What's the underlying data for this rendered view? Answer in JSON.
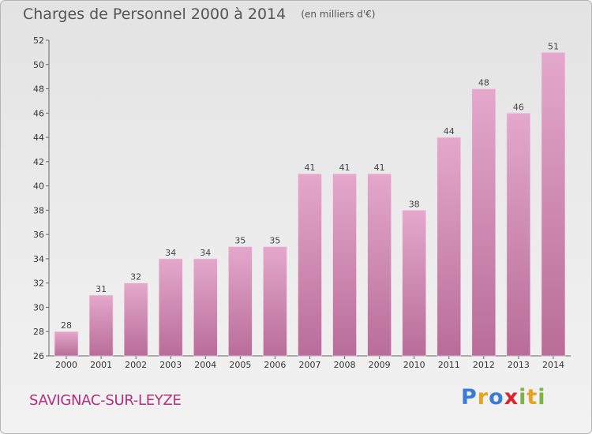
{
  "header": {
    "title": "Charges de Personnel 2000 à 2014",
    "unit": "(en milliers d'€)"
  },
  "footer": {
    "commune": "SAVIGNAC-SUR-LEYZE",
    "logo_letters": [
      {
        "ch": "P",
        "color": "#3a7bd5"
      },
      {
        "ch": "r",
        "color": "#e8a21d"
      },
      {
        "ch": "o",
        "color": "#3a7bd5"
      },
      {
        "ch": "x",
        "color": "#d9262e"
      },
      {
        "ch": "i",
        "color": "#7cb342"
      },
      {
        "ch": "t",
        "color": "#e8a21d"
      },
      {
        "ch": "i",
        "color": "#7cb342"
      }
    ]
  },
  "colors": {
    "bar_light": "#e4a8cc",
    "bar_dark": "#b86d98",
    "accent": "#b22f7f"
  },
  "chart_data": {
    "type": "bar",
    "title": "Charges de Personnel 2000 à 2014",
    "xlabel": "",
    "ylabel": "",
    "categories": [
      "2000",
      "2001",
      "2002",
      "2003",
      "2004",
      "2005",
      "2006",
      "2007",
      "2008",
      "2009",
      "2010",
      "2011",
      "2012",
      "2013",
      "2014"
    ],
    "values": [
      28,
      31,
      32,
      34,
      34,
      35,
      35,
      41,
      41,
      41,
      38,
      44,
      48,
      46,
      51
    ],
    "ylim": [
      26,
      52
    ],
    "yticks": [
      26,
      28,
      30,
      32,
      34,
      36,
      38,
      40,
      42,
      44,
      46,
      48,
      50,
      52
    ],
    "grid": false,
    "data_labels": true
  }
}
